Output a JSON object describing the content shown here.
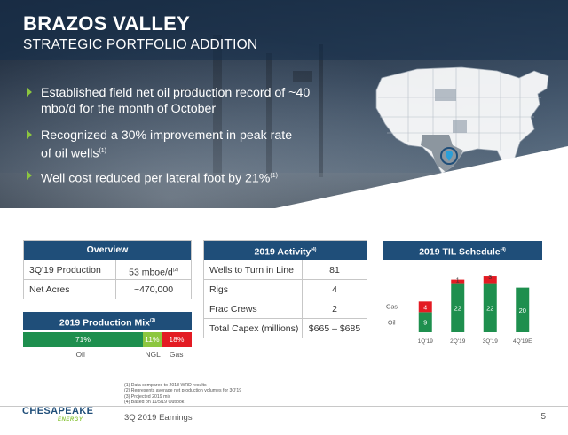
{
  "header": {
    "title": "BRAZOS VALLEY",
    "subtitle": "STRATEGIC PORTFOLIO ADDITION"
  },
  "bullets": [
    {
      "text": "Established field net oil production record of ~40 mbo/d for the month of October",
      "note": ""
    },
    {
      "text": "Recognized a 30% improvement in peak rate of oil wells",
      "note": "(1)"
    },
    {
      "text": "Well cost reduced per lateral foot by 21%",
      "note": "(1)"
    }
  ],
  "overview": {
    "title": "Overview",
    "rows": [
      {
        "label": "3Q'19 Production",
        "value": "53 mboe/d",
        "note": "(2)"
      },
      {
        "label": "Net Acres",
        "value": "~470,000",
        "note": ""
      }
    ]
  },
  "activity": {
    "title": "2019 Activity",
    "title_note": "(4)",
    "rows": [
      {
        "label": "Wells to Turn in Line",
        "value": "81"
      },
      {
        "label": "Rigs",
        "value": "4"
      },
      {
        "label": "Frac Crews",
        "value": "2"
      },
      {
        "label": "Total Capex (millions)",
        "value": "$665 – $685"
      }
    ]
  },
  "production_mix": {
    "title": "2019 Production Mix",
    "title_note": "(3)",
    "segments": [
      {
        "name": "Oil",
        "value": 71,
        "label": "71%",
        "color": "#1e8f4e"
      },
      {
        "name": "NGL",
        "value": 11,
        "label": "11%",
        "color": "#8cc63f"
      },
      {
        "name": "Gas",
        "value": 18,
        "label": "18%",
        "color": "#e31b23"
      }
    ]
  },
  "til_schedule": {
    "title": "2019 TIL Schedule",
    "title_note": "(4)"
  },
  "chart_data": {
    "type": "bar",
    "stacked": true,
    "categories": [
      "1Q'19",
      "2Q'19",
      "3Q'19",
      "4Q'19E"
    ],
    "series": [
      {
        "name": "Oil",
        "values": [
          9,
          22,
          22,
          20
        ],
        "color": "#1e8f4e"
      },
      {
        "name": "Gas",
        "values": [
          4,
          1,
          3,
          0
        ],
        "color": "#e31b23"
      }
    ],
    "title": "2019 TIL Schedule",
    "ylim": [
      0,
      27
    ],
    "legend": "left"
  },
  "footnotes": [
    "(1)  Data compared to 2018 WRD results",
    "(2)  Represents average net production volumes for 3Q'19",
    "(3)  Projected 2019 mix",
    "(4)  Based on 11/5/19 Outlook"
  ],
  "footer": {
    "logo_line1": "CHESAPEAKE",
    "logo_line2": "ENERGY",
    "event": "3Q 2019 Earnings",
    "page": "5"
  },
  "colors": {
    "navy": "#1f4e79",
    "green": "#1e8f4e",
    "lime": "#8cc63f",
    "red": "#e31b23"
  },
  "icons": [
    "triangle-bullet-icon",
    "us-map-icon",
    "location-pin-icon"
  ]
}
